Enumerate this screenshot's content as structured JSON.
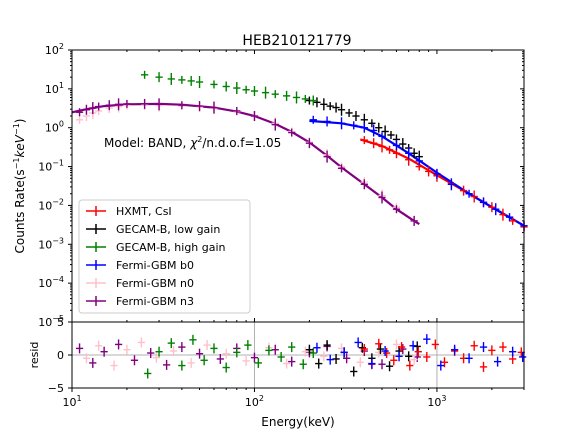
{
  "figure": {
    "title": "HEB210121779",
    "annotation": {
      "prefix": "Model: BAND, ",
      "chi": "χ",
      "sup": "2",
      "suffix": "/n.d.o.f=1.05"
    }
  },
  "chart_data": [
    {
      "type": "scatter",
      "panel": "main",
      "title": "HEB210121779",
      "xlabel": "Energy(keV)",
      "ylabel_parts": {
        "main": "Counts Rate(s",
        "exp1": "−1",
        "mid": "keV",
        "exp2": "−1",
        "end": ")"
      },
      "x_scale": "log",
      "y_scale": "log",
      "xlim": [
        10,
        3000
      ],
      "ylim": [
        1e-05,
        100
      ],
      "x_tick_labels": [
        {
          "value": 10,
          "base": "10",
          "exp": "1"
        },
        {
          "value": 100,
          "base": "10",
          "exp": "2"
        },
        {
          "value": 1000,
          "base": "10",
          "exp": "3"
        }
      ],
      "y_tick_labels": [
        {
          "value": 1e-05,
          "base": "10",
          "exp": "−5"
        },
        {
          "value": 0.0001,
          "base": "10",
          "exp": "−4"
        },
        {
          "value": 0.001,
          "base": "10",
          "exp": "−3"
        },
        {
          "value": 0.01,
          "base": "10",
          "exp": "−2"
        },
        {
          "value": 0.1,
          "base": "10",
          "exp": "−1"
        },
        {
          "value": 1,
          "base": "10",
          "exp": "0"
        },
        {
          "value": 10,
          "base": "10",
          "exp": "1"
        },
        {
          "value": 100,
          "base": "10",
          "exp": "2"
        }
      ],
      "legend_placement": "lower-left",
      "series": [
        {
          "name": "HXMT, CsI",
          "color": "#ff0000",
          "x": [
            400,
            450,
            500,
            550,
            600,
            700,
            800,
            900,
            1000,
            1200,
            1400,
            1600,
            1800,
            2000,
            2300,
            2600,
            3000
          ],
          "y": [
            0.48,
            0.4,
            0.33,
            0.27,
            0.22,
            0.15,
            0.1,
            0.075,
            0.058,
            0.036,
            0.024,
            0.017,
            0.012,
            0.009,
            0.0058,
            0.004,
            0.0028
          ],
          "model": {
            "x": [
              380,
              500,
              700,
              1000,
              1500,
              2000,
              3000
            ],
            "y": [
              0.5,
              0.34,
              0.16,
              0.06,
              0.02,
              0.009,
              0.003
            ]
          }
        },
        {
          "name": "GECAM-B, low gain",
          "color": "#000000",
          "x": [
            200,
            220,
            240,
            260,
            280,
            300,
            330,
            360,
            400,
            440,
            480,
            520,
            560,
            600,
            650,
            700,
            750,
            800
          ],
          "y": [
            5.0,
            4.5,
            4.0,
            3.6,
            3.3,
            2.9,
            2.4,
            2.0,
            1.6,
            1.3,
            1.0,
            0.8,
            0.65,
            0.5,
            0.38,
            0.3,
            0.22,
            0.18
          ],
          "model": null
        },
        {
          "name": "GECAM-B, high gain",
          "color": "#008000",
          "x": [
            25,
            30,
            35,
            40,
            45,
            50,
            60,
            70,
            80,
            90,
            100,
            115,
            130,
            150,
            170,
            190,
            210
          ],
          "y": [
            23,
            20,
            18,
            17,
            16,
            15,
            13,
            11.5,
            10.5,
            9.5,
            8.8,
            8.0,
            7.3,
            6.6,
            6.0,
            5.5,
            5.0
          ],
          "model": null
        },
        {
          "name": "Fermi-GBM b0",
          "color": "#0000ff",
          "x": [
            210,
            250,
            300,
            350,
            400,
            450,
            500,
            600,
            700,
            800,
            1000,
            1200,
            1500,
            1800,
            2100,
            2500,
            3000
          ],
          "y": [
            1.6,
            1.45,
            1.3,
            1.15,
            1.0,
            0.85,
            0.6,
            0.35,
            0.22,
            0.14,
            0.065,
            0.035,
            0.02,
            0.012,
            0.008,
            0.005,
            0.003
          ],
          "model": {
            "x": [
              200,
              300,
              400,
              500,
              700,
              1000,
              1500,
              2000,
              3000
            ],
            "y": [
              1.5,
              1.3,
              1.0,
              0.6,
              0.22,
              0.07,
              0.02,
              0.009,
              0.003
            ]
          }
        },
        {
          "name": "Fermi-GBM n0",
          "color": "#ffc0cb",
          "x": [
            11,
            12,
            13,
            14,
            16,
            18,
            20,
            25,
            30,
            40,
            50,
            60,
            80,
            100,
            130,
            160,
            200,
            250,
            300,
            400,
            500,
            600,
            750
          ],
          "y": [
            1.6,
            2.0,
            2.4,
            2.7,
            3.2,
            3.5,
            3.7,
            3.8,
            3.7,
            3.6,
            3.4,
            3.2,
            2.6,
            2.0,
            1.3,
            0.8,
            0.42,
            0.2,
            0.1,
            0.04,
            0.018,
            0.009,
            0.004
          ],
          "model": null
        },
        {
          "name": "Fermi-GBM n3",
          "color": "#800080",
          "x": [
            11,
            12,
            13,
            14,
            16,
            18,
            20,
            25,
            30,
            40,
            50,
            60,
            80,
            100,
            130,
            160,
            200,
            250,
            300,
            400,
            500,
            600,
            750
          ],
          "y": [
            2.5,
            2.9,
            3.2,
            3.5,
            3.8,
            4.0,
            4.1,
            4.1,
            4.0,
            3.8,
            3.6,
            3.3,
            2.7,
            2.0,
            1.2,
            0.75,
            0.4,
            0.18,
            0.09,
            0.035,
            0.016,
            0.008,
            0.004
          ],
          "model": {
            "x": [
              10,
              12,
              15,
              20,
              30,
              40,
              60,
              80,
              100,
              130,
              160,
              200,
              250,
              300,
              400,
              500,
              600,
              750,
              800
            ],
            "y": [
              2.5,
              3.0,
              3.6,
              4.0,
              4.1,
              3.9,
              3.3,
              2.6,
              2.0,
              1.25,
              0.78,
              0.42,
              0.19,
              0.095,
              0.035,
              0.016,
              0.008,
              0.004,
              0.0033
            ]
          }
        }
      ]
    },
    {
      "type": "scatter",
      "panel": "residuals",
      "xlabel": "Energy(keV)",
      "ylabel": "resid",
      "x_scale": "log",
      "xlim": [
        10,
        3000
      ],
      "ylim": [
        -5,
        5
      ],
      "y_tick_labels": [
        {
          "value": -5,
          "text": "−5"
        },
        {
          "value": 0,
          "text": "0"
        },
        {
          "value": 5,
          "text": "5"
        }
      ],
      "series": [
        {
          "name": "Fermi-GBM n3",
          "color": "#800080",
          "x": [
            11,
            13,
            15,
            18,
            22,
            27,
            33,
            40,
            50,
            65,
            80,
            100,
            130,
            160,
            200,
            250,
            320,
            400,
            500,
            650,
            780
          ],
          "y": [
            1.0,
            -1.2,
            0.5,
            1.6,
            -0.8,
            0.3,
            -1.5,
            1.2,
            0.2,
            -0.6,
            1.0,
            -0.4,
            0.8,
            -1.0,
            0.4,
            1.3,
            -0.5,
            0.6,
            -1.4,
            0.9,
            -0.3
          ]
        },
        {
          "name": "Fermi-GBM n0",
          "color": "#ffc0cb",
          "x": [
            12,
            14,
            17,
            20,
            24,
            29,
            36,
            45,
            55,
            70,
            90,
            120,
            150,
            190,
            240,
            300,
            380,
            480,
            600,
            750
          ],
          "y": [
            -0.5,
            1.4,
            -1.6,
            0.8,
            1.9,
            -0.4,
            0.6,
            -1.2,
            1.5,
            0.2,
            -0.9,
            1.1,
            -1.3,
            0.5,
            -0.2,
            1.0,
            -1.1,
            0.4,
            1.6,
            -0.7
          ]
        },
        {
          "name": "GECAM-B, high gain",
          "color": "#008000",
          "x": [
            26,
            30,
            35,
            40,
            46,
            53,
            60,
            70,
            80,
            92,
            105,
            120,
            140,
            160,
            185,
            210
          ],
          "y": [
            -2.8,
            0.5,
            1.8,
            -1.6,
            2.3,
            -0.8,
            1.0,
            -1.9,
            0.4,
            1.5,
            -1.2,
            0.7,
            -0.3,
            1.2,
            -1.4,
            0.3
          ]
        },
        {
          "name": "GECAM-B, low gain",
          "color": "#000000",
          "x": [
            200,
            225,
            250,
            280,
            310,
            350,
            390,
            440,
            490,
            550,
            620,
            700,
            780
          ],
          "y": [
            0.8,
            -1.3,
            1.5,
            -0.6,
            0.4,
            -2.5,
            1.1,
            -0.5,
            0.9,
            -1.7,
            0.6,
            -0.2,
            1.3
          ]
        },
        {
          "name": "HXMT, CsI",
          "color": "#ff0000",
          "x": [
            400,
            440,
            480,
            530,
            580,
            640,
            710,
            790,
            880,
            980,
            1100,
            1250,
            1400,
            1600,
            1800,
            2000,
            2300,
            2600,
            2900
          ],
          "y": [
            0.9,
            -1.4,
            1.7,
            0.3,
            -0.8,
            1.2,
            -1.6,
            0.5,
            -0.3,
            1.6,
            -1.1,
            0.6,
            -0.5,
            1.4,
            -1.8,
            0.7,
            1.2,
            -0.6,
            0.4
          ]
        },
        {
          "name": "Fermi-GBM b0",
          "color": "#0000ff",
          "x": [
            220,
            260,
            310,
            370,
            440,
            520,
            620,
            740,
            880,
            1050,
            1250,
            1500,
            1800,
            2150,
            2600,
            2950
          ],
          "y": [
            1.1,
            -0.7,
            0.4,
            1.9,
            -1.3,
            0.6,
            -0.2,
            1.4,
            2.4,
            -1.6,
            0.8,
            -0.5,
            1.2,
            -1.0,
            0.5,
            -0.3
          ]
        }
      ]
    }
  ]
}
